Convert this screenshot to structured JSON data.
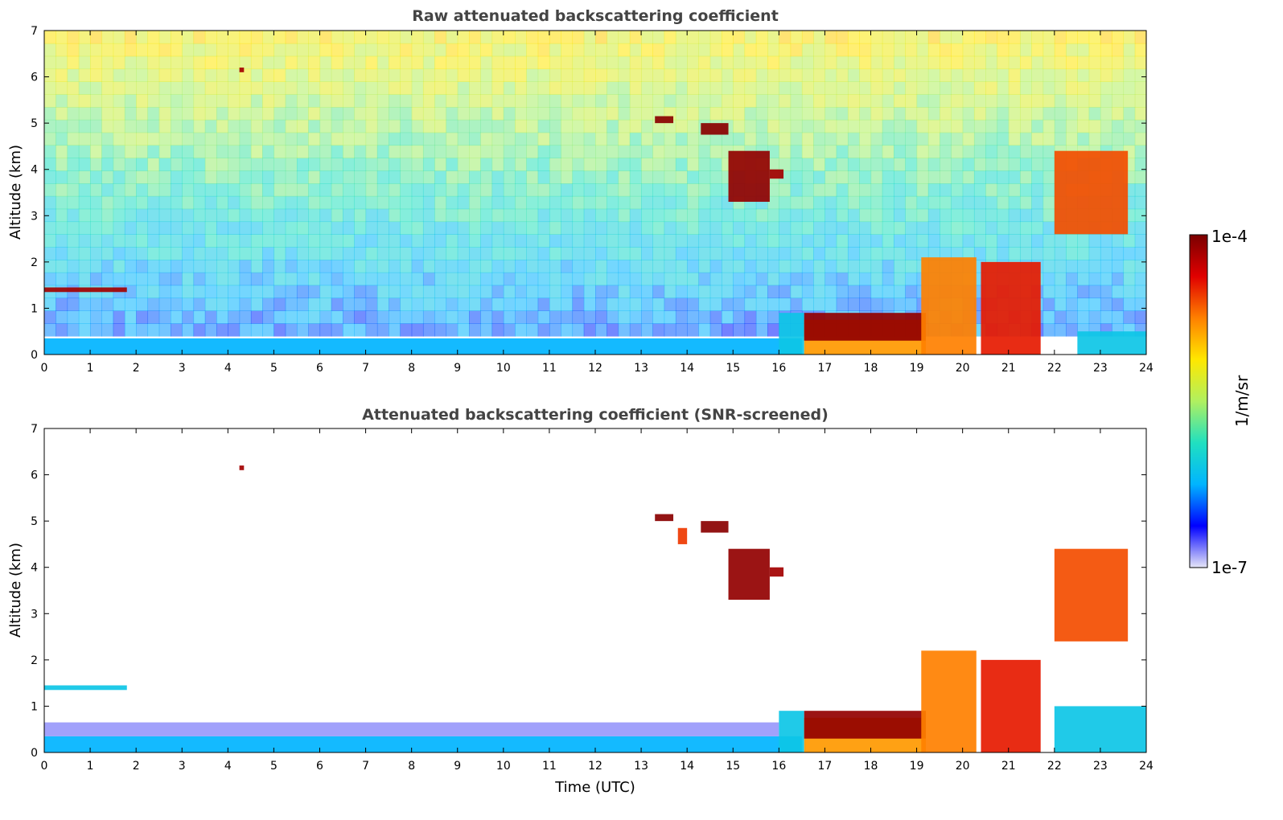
{
  "chart_data": [
    {
      "type": "heatmap",
      "title": "Raw attenuated backscattering coefficient",
      "xlabel": "",
      "ylabel": "Altitude (km)",
      "xlim": [
        0,
        24
      ],
      "ylim": [
        0,
        7
      ],
      "x_ticks": [
        0,
        1,
        2,
        3,
        4,
        5,
        6,
        7,
        8,
        9,
        10,
        11,
        12,
        13,
        14,
        15,
        16,
        17,
        18,
        19,
        20,
        21,
        22,
        23,
        24
      ],
      "y_ticks": [
        0,
        1,
        2,
        3,
        4,
        5,
        6,
        7
      ],
      "features": [
        {
          "kind": "boundary_layer",
          "t_start": 0,
          "t_end": 16.5,
          "base_km": 0,
          "top_km": 0.35,
          "level": 0.25
        },
        {
          "kind": "noise_gradient",
          "t_start": 0,
          "t_end": 24,
          "base_km": 0.4,
          "top_km": 7,
          "level_bottom": 0.2,
          "level_top": 0.62
        },
        {
          "kind": "cloud",
          "t_start": 0,
          "t_end": 1.8,
          "base_km": 1.35,
          "top_km": 1.45,
          "level": 0.95
        },
        {
          "kind": "cloud",
          "t_start": 4.25,
          "t_end": 4.35,
          "base_km": 6.1,
          "top_km": 6.2,
          "level": 0.95
        },
        {
          "kind": "cloud",
          "t_start": 13.3,
          "t_end": 13.7,
          "base_km": 5.0,
          "top_km": 5.15,
          "level": 0.98
        },
        {
          "kind": "cloud",
          "t_start": 14.3,
          "t_end": 14.9,
          "base_km": 4.75,
          "top_km": 5.0,
          "level": 0.98
        },
        {
          "kind": "cloud",
          "t_start": 14.9,
          "t_end": 15.8,
          "base_km": 3.3,
          "top_km": 4.4,
          "level": 0.97
        },
        {
          "kind": "cloud",
          "t_start": 15.8,
          "t_end": 16.1,
          "base_km": 3.8,
          "top_km": 4.0,
          "level": 0.95
        },
        {
          "kind": "boundary_layer",
          "t_start": 16.0,
          "t_end": 16.55,
          "base_km": 0,
          "top_km": 0.9,
          "level": 0.3
        },
        {
          "kind": "aerosol_layer",
          "t_start": 16.55,
          "t_end": 19.2,
          "base_km": 0,
          "top_km": 0.75,
          "level": 0.72
        },
        {
          "kind": "cloud",
          "t_start": 16.55,
          "t_end": 19.2,
          "base_km": 0.3,
          "top_km": 0.9,
          "level": 0.97
        },
        {
          "kind": "precipitation",
          "t_start": 19.1,
          "t_end": 20.3,
          "base_km": 0,
          "top_km": 2.1,
          "level": 0.75
        },
        {
          "kind": "precipitation",
          "t_start": 20.4,
          "t_end": 21.7,
          "base_km": 0,
          "top_km": 2.0,
          "level": 0.85
        },
        {
          "kind": "cloud",
          "t_start": 22.0,
          "t_end": 23.6,
          "base_km": 2.6,
          "top_km": 4.4,
          "level": 0.8
        },
        {
          "kind": "boundary_layer",
          "t_start": 22.5,
          "t_end": 24,
          "base_km": 0,
          "top_km": 0.5,
          "level": 0.3
        }
      ]
    },
    {
      "type": "heatmap",
      "title": "Attenuated backscattering coefficient (SNR-screened)",
      "xlabel": "Time (UTC)",
      "ylabel": "Altitude (km)",
      "xlim": [
        0,
        24
      ],
      "ylim": [
        0,
        7
      ],
      "x_ticks": [
        0,
        1,
        2,
        3,
        4,
        5,
        6,
        7,
        8,
        9,
        10,
        11,
        12,
        13,
        14,
        15,
        16,
        17,
        18,
        19,
        20,
        21,
        22,
        23,
        24
      ],
      "y_ticks": [
        0,
        1,
        2,
        3,
        4,
        5,
        6,
        7
      ],
      "features": [
        {
          "kind": "boundary_layer",
          "t_start": 0,
          "t_end": 16.5,
          "base_km": 0,
          "top_km": 0.35,
          "level": 0.25
        },
        {
          "kind": "aerosol_haze",
          "t_start": 0,
          "t_end": 16.0,
          "base_km": 0.35,
          "top_km": 0.65,
          "level": 0.05
        },
        {
          "kind": "cloud",
          "t_start": 0,
          "t_end": 1.8,
          "base_km": 1.35,
          "top_km": 1.45,
          "level": 0.3
        },
        {
          "kind": "cloud",
          "t_start": 4.25,
          "t_end": 4.35,
          "base_km": 6.1,
          "top_km": 6.2,
          "level": 0.95
        },
        {
          "kind": "cloud",
          "t_start": 13.3,
          "t_end": 13.7,
          "base_km": 5.0,
          "top_km": 5.15,
          "level": 0.98
        },
        {
          "kind": "cloud",
          "t_start": 13.8,
          "t_end": 14.0,
          "base_km": 4.5,
          "top_km": 4.85,
          "level": 0.82
        },
        {
          "kind": "cloud",
          "t_start": 14.3,
          "t_end": 14.9,
          "base_km": 4.75,
          "top_km": 5.0,
          "level": 0.98
        },
        {
          "kind": "cloud",
          "t_start": 14.9,
          "t_end": 15.8,
          "base_km": 3.3,
          "top_km": 4.4,
          "level": 0.97
        },
        {
          "kind": "cloud",
          "t_start": 15.8,
          "t_end": 16.1,
          "base_km": 3.8,
          "top_km": 4.0,
          "level": 0.95
        },
        {
          "kind": "boundary_layer",
          "t_start": 16.0,
          "t_end": 16.55,
          "base_km": 0,
          "top_km": 0.9,
          "level": 0.3
        },
        {
          "kind": "aerosol_layer",
          "t_start": 16.55,
          "t_end": 19.2,
          "base_km": 0,
          "top_km": 0.75,
          "level": 0.72
        },
        {
          "kind": "cloud",
          "t_start": 16.55,
          "t_end": 19.2,
          "base_km": 0.3,
          "top_km": 0.9,
          "level": 0.97
        },
        {
          "kind": "precipitation",
          "t_start": 19.1,
          "t_end": 20.3,
          "base_km": 0,
          "top_km": 2.2,
          "level": 0.75
        },
        {
          "kind": "precipitation",
          "t_start": 20.4,
          "t_end": 21.7,
          "base_km": 0,
          "top_km": 2.0,
          "level": 0.85
        },
        {
          "kind": "cloud",
          "t_start": 22.0,
          "t_end": 23.6,
          "base_km": 2.4,
          "top_km": 4.4,
          "level": 0.8
        },
        {
          "kind": "boundary_layer",
          "t_start": 22.0,
          "t_end": 24,
          "base_km": 0,
          "top_km": 1.0,
          "level": 0.3
        }
      ]
    }
  ],
  "colorbar": {
    "label": "1/m/sr",
    "max_label": "1e-4",
    "min_label": "1e-7",
    "colormap": [
      "#e6e6f7",
      "#0000ff",
      "#00b4ff",
      "#20e0c0",
      "#b0f060",
      "#ffe800",
      "#ff8000",
      "#e00000",
      "#7a0000"
    ]
  }
}
